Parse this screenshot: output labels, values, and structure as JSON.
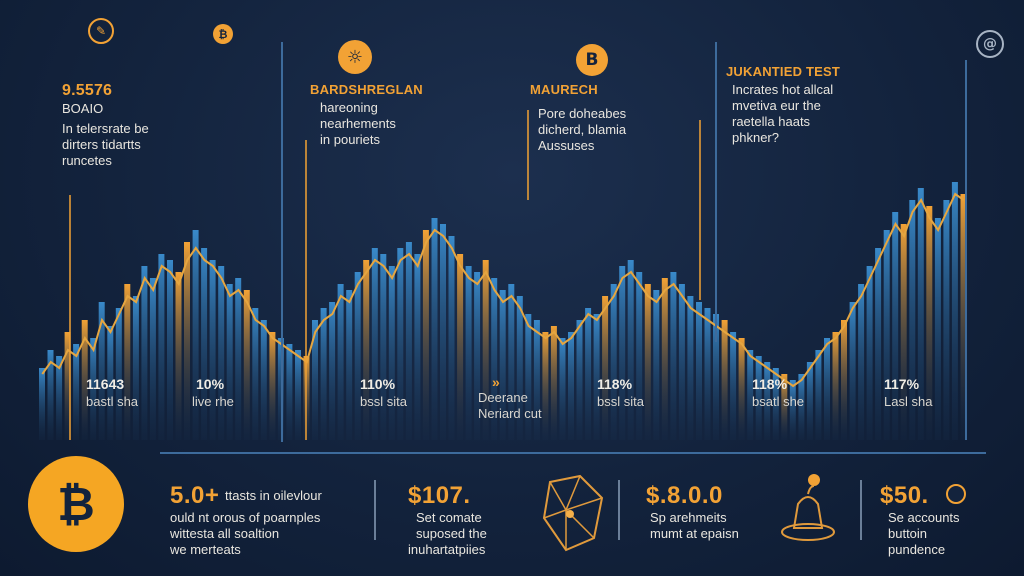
{
  "panels": [
    {
      "title": "9.5576",
      "subtitle": "BOAIO",
      "body": [
        "In telersrate be",
        "dirters tidartts",
        "runcetes"
      ]
    },
    {
      "title": "BARDSHREGLAN",
      "body": [
        "hareoning",
        "nearhements",
        "in pouriets"
      ]
    },
    {
      "title": "MAURECH",
      "body": [
        "Pore doheabes",
        "dicherd, blamia",
        "Aussuses"
      ]
    },
    {
      "title": "JUKANTIED TEST",
      "body": [
        "Incrates hot allcal",
        "mvetiva eur the",
        "raetella haats",
        "phkner?"
      ]
    }
  ],
  "stats": [
    {
      "value": "11643",
      "label": "bastl sha"
    },
    {
      "value": "10%",
      "label": "live rhe"
    },
    {
      "value": "110%",
      "label": "bssl sita"
    },
    {
      "value": "»",
      "label": "Deerane",
      "label2": "Neriard cut"
    },
    {
      "value": "118%",
      "label": "bssl sita"
    },
    {
      "value": "118%",
      "label": "bsatl she"
    },
    {
      "value": "117%",
      "label": "Lasl sha"
    }
  ],
  "bottom": [
    {
      "value": "5.0+",
      "lines": [
        "ttasts in oilevlour",
        "ould nt orous of poarnples",
        "wittesta all soaltion",
        "we merteats"
      ]
    },
    {
      "value": "$107.",
      "lines": [
        "Set comate",
        "suposed the",
        "inuhartatpiies"
      ]
    },
    {
      "value": "$.8.0.0",
      "lines": [
        "Sp arehmeits",
        "mumt at epaisn"
      ]
    },
    {
      "value": "$50.",
      "lines": [
        "Se accounts",
        "buttoin",
        "pundence"
      ]
    }
  ],
  "icons": {
    "bitcoin_large": "₿",
    "bitcoin_small": "B",
    "coin": "₿"
  },
  "colors": {
    "background": "#13233d",
    "orange": "#f2a235",
    "blue": "#3b8fd1",
    "line": "#e6a640",
    "divider": "#3d6b9c"
  },
  "chart_data": {
    "type": "bar",
    "title": "",
    "xlabel": "",
    "ylabel": "",
    "ylim": [
      0,
      100
    ],
    "series": [
      {
        "values": [
          24,
          30,
          28,
          36,
          32,
          40,
          34,
          46,
          38,
          44,
          52,
          48,
          58,
          54,
          62,
          60,
          56,
          66,
          70,
          64,
          60,
          58,
          52,
          54,
          50,
          44,
          40,
          36,
          34,
          32,
          30,
          28,
          40,
          44,
          46,
          52,
          50,
          56,
          60,
          64,
          62,
          58,
          64,
          66,
          62,
          70,
          74,
          72,
          68,
          62,
          58,
          56,
          60,
          54,
          50,
          52,
          48,
          42,
          40,
          36,
          38,
          34,
          36,
          40,
          44,
          42,
          48,
          52,
          58,
          60,
          56,
          52,
          50,
          54,
          56,
          52,
          48,
          46,
          44,
          42,
          40,
          36,
          34,
          30,
          28,
          26,
          24,
          22,
          20,
          22,
          26,
          30,
          34,
          36,
          40,
          46,
          52,
          58,
          64,
          70,
          76,
          72,
          80,
          84,
          78,
          74,
          80,
          86,
          82
        ]
      },
      {
        "values": [
          22,
          26,
          24,
          30,
          28,
          34,
          30,
          40,
          36,
          42,
          48,
          46,
          54,
          50,
          58,
          56,
          52,
          60,
          64,
          60,
          58,
          54,
          48,
          50,
          46,
          40,
          38,
          34,
          32,
          30,
          28,
          26,
          36,
          40,
          42,
          48,
          46,
          52,
          56,
          60,
          58,
          54,
          60,
          62,
          58,
          66,
          70,
          68,
          64,
          58,
          54,
          52,
          56,
          50,
          46,
          48,
          44,
          38,
          36,
          34,
          36,
          32,
          34,
          38,
          42,
          40,
          44,
          48,
          54,
          56,
          52,
          48,
          46,
          50,
          52,
          48,
          44,
          42,
          40,
          38,
          36,
          34,
          32,
          28,
          26,
          24,
          22,
          20,
          18,
          20,
          24,
          28,
          32,
          34,
          38,
          44,
          48,
          54,
          60,
          66,
          72,
          68,
          76,
          80,
          74,
          70,
          76,
          82,
          80
        ]
      }
    ]
  }
}
